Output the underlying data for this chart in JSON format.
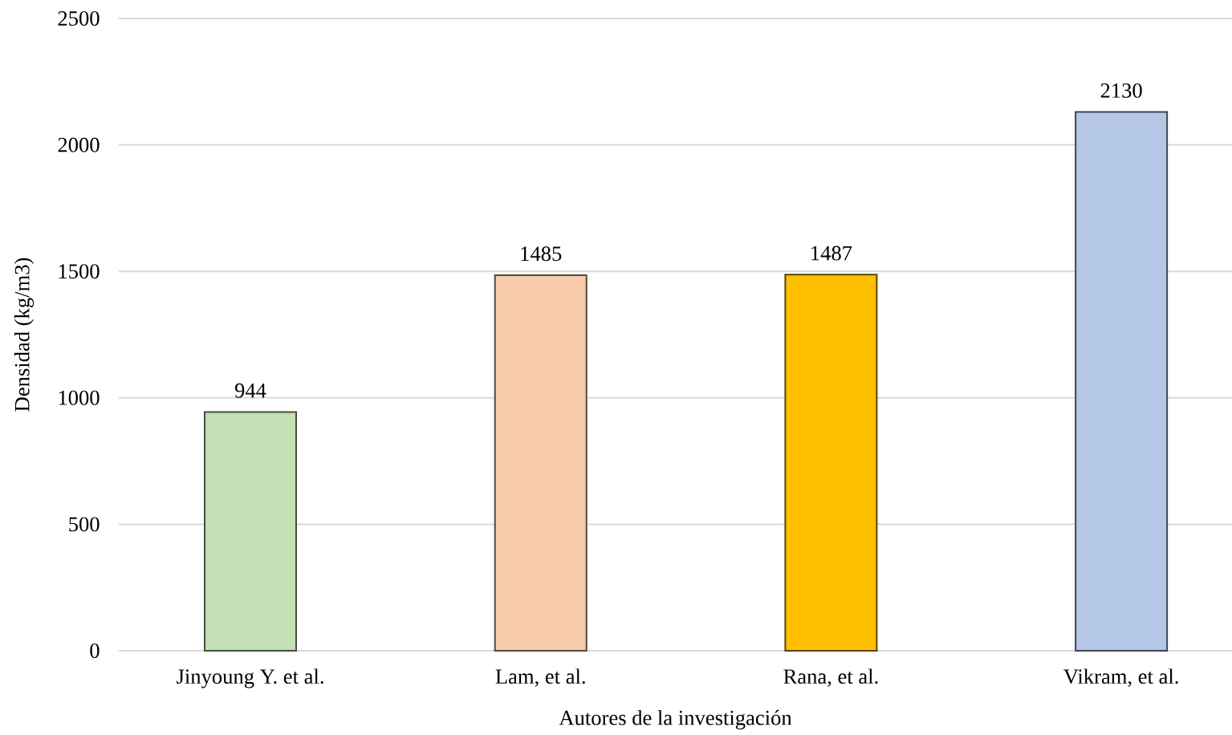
{
  "chart_data": {
    "type": "bar",
    "categories": [
      "Jinyoung Y. et al.",
      "Lam, et al.",
      "Rana, et al.",
      "Vikram,  et al."
    ],
    "values": [
      944,
      1485,
      1487,
      2130
    ],
    "colors": [
      "#c5e0b4",
      "#f8cbad",
      "#ffc000",
      "#b4c7e7"
    ],
    "xlabel": "Autores de la investigación",
    "ylabel": "Densidad (kg/m3)",
    "ylim": [
      0,
      2500
    ],
    "yticks": [
      0,
      500,
      1000,
      1500,
      2000,
      2500
    ],
    "grid": "y",
    "data_labels": true
  }
}
